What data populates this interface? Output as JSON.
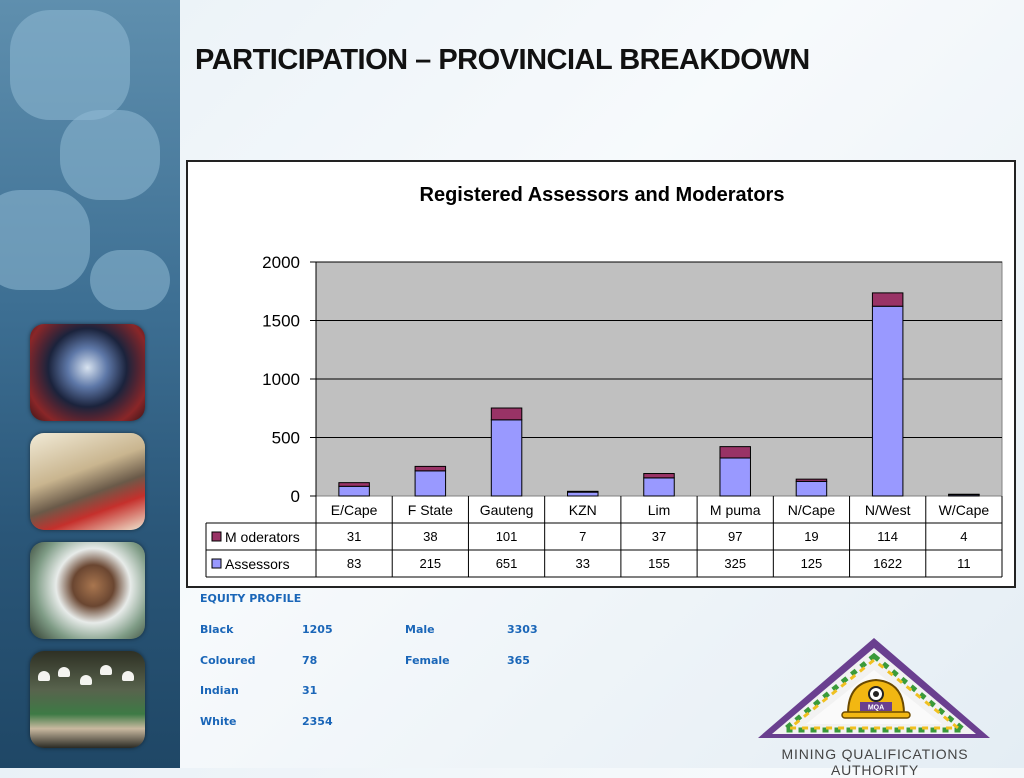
{
  "slide": {
    "title": "PARTICIPATION – PROVINCIAL BREAKDOWN"
  },
  "chart_data": {
    "type": "bar",
    "stacked": true,
    "title": "Registered Assessors and Moderators",
    "xlabel": "",
    "ylabel": "",
    "ylim": [
      0,
      2000
    ],
    "yticks": [
      0,
      500,
      1000,
      1500,
      2000
    ],
    "grid": true,
    "categories": [
      "E/Cape",
      "F State",
      "Gauteng",
      "KZN",
      "Lim",
      "M puma",
      "N/Cape",
      "N/West",
      "W/Cape"
    ],
    "series": [
      {
        "name": "Assessors",
        "color": "#9999ff",
        "values": [
          83,
          215,
          651,
          33,
          155,
          325,
          125,
          1622,
          11
        ]
      },
      {
        "name": "M oderators",
        "color": "#993366",
        "values": [
          31,
          38,
          101,
          7,
          37,
          97,
          19,
          114,
          4
        ]
      }
    ],
    "table_rows": [
      {
        "name": "M oderators",
        "color": "#993366",
        "values": [
          "31",
          "38",
          "101",
          "7",
          "37",
          "97",
          "19",
          "114",
          "4"
        ]
      },
      {
        "name": "Assessors",
        "color": "#9999ff",
        "values": [
          "83",
          "215",
          "651",
          "33",
          "155",
          "325",
          "125",
          "1622",
          "11"
        ]
      }
    ]
  },
  "equity_profile": {
    "heading": "EQUITY PROFILE",
    "race": [
      {
        "label": "Black",
        "value": "1205"
      },
      {
        "label": "Coloured",
        "value": "78"
      },
      {
        "label": "Indian",
        "value": "31"
      },
      {
        "label": "White",
        "value": "2354"
      }
    ],
    "gender": [
      {
        "label": "Male",
        "value": "3303"
      },
      {
        "label": "Female",
        "value": "365"
      }
    ]
  },
  "logo": {
    "badge_text": "MQA",
    "org_name": "MINING QUALIFICATIONS AUTHORITY"
  }
}
